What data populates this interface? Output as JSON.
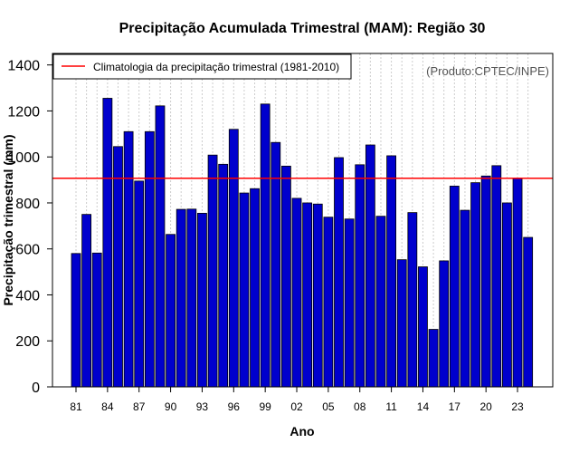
{
  "chart_data": {
    "type": "bar",
    "title": "Precipitação Acumulada Trimestral (MAM): Região 30",
    "xlabel": "Ano",
    "ylabel": "Precipitação trimestral (mm)",
    "source_note": "(Produto:CPTEC/INPE)",
    "ylim": [
      0,
      1450
    ],
    "yticks": [
      0,
      200,
      400,
      600,
      800,
      1000,
      1200,
      1400
    ],
    "x_tick_labels": [
      "81",
      "84",
      "87",
      "90",
      "93",
      "96",
      "99",
      "02",
      "05",
      "08",
      "11",
      "14",
      "17",
      "20",
      "23"
    ],
    "categories": [
      1981,
      1982,
      1983,
      1984,
      1985,
      1986,
      1987,
      1988,
      1989,
      1990,
      1991,
      1992,
      1993,
      1994,
      1995,
      1996,
      1997,
      1998,
      1999,
      2000,
      2001,
      2002,
      2003,
      2004,
      2005,
      2006,
      2007,
      2008,
      2009,
      2010,
      2011,
      2012,
      2013,
      2014,
      2015,
      2016,
      2017,
      2018,
      2019,
      2020,
      2021,
      2022,
      2023,
      2024
    ],
    "values": [
      580,
      750,
      582,
      1255,
      1045,
      1110,
      895,
      1110,
      1222,
      663,
      772,
      773,
      755,
      1008,
      968,
      1120,
      843,
      862,
      1230,
      1063,
      960,
      820,
      800,
      795,
      738,
      997,
      730,
      966,
      1052,
      742,
      1005,
      553,
      758,
      522,
      250,
      548,
      873,
      768,
      888,
      917,
      962,
      800,
      908,
      650
    ],
    "bar_color": "#0000cd",
    "climatology": {
      "value": 907,
      "label": "Climatologia da precipitação trimestral (1981-2010)",
      "color": "#ff0000"
    },
    "legend_position": "top-left",
    "grid": "vertical dotted"
  }
}
